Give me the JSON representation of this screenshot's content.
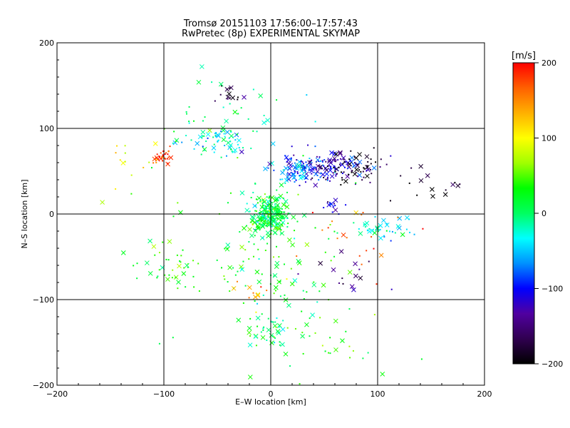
{
  "chart_data": {
    "type": "scatter",
    "title": "Tromsø 20151103 17:56:00–17:57:43",
    "subtitle": "RwPretec (8p) EXPERIMENTAL SKYMAP",
    "xlabel": "E–W location [km]",
    "ylabel": "N–S location [km]",
    "xlim": [
      -200,
      200
    ],
    "ylim": [
      -200,
      200
    ],
    "xticks": [
      -200,
      -100,
      0,
      100,
      200
    ],
    "yticks": [
      -200,
      -100,
      0,
      100,
      200
    ],
    "grid": true,
    "colorbar": {
      "label": "[m/s]",
      "min": -200,
      "max": 200,
      "ticks": [
        200,
        100,
        0,
        -100,
        -200
      ],
      "colors": [
        "#000000",
        "#300050",
        "#5000a0",
        "#0000ff",
        "#0090ff",
        "#00ffff",
        "#00ff60",
        "#00ff00",
        "#a0ff00",
        "#ffff00",
        "#ffb000",
        "#ff6000",
        "#ff0000"
      ]
    },
    "clusters": [
      {
        "x": 0,
        "y": 0,
        "vel": 10,
        "n": 260,
        "sx": 9,
        "sy": 12
      },
      {
        "x": 50,
        "y": 55,
        "vel": -110,
        "n": 130,
        "sx": 20,
        "sy": 8
      },
      {
        "x": 25,
        "y": 50,
        "vel": -70,
        "n": 60,
        "sx": 10,
        "sy": 8
      },
      {
        "x": 75,
        "y": 55,
        "vel": -190,
        "n": 70,
        "sx": 15,
        "sy": 10
      },
      {
        "x": -100,
        "y": 68,
        "vel": 185,
        "n": 30,
        "sx": 5,
        "sy": 5
      },
      {
        "x": -50,
        "y": 85,
        "vel": -30,
        "n": 60,
        "sx": 15,
        "sy": 8
      },
      {
        "x": -40,
        "y": 140,
        "vel": -170,
        "n": 15,
        "sx": 8,
        "sy": 6
      },
      {
        "x": 60,
        "y": 10,
        "vel": -120,
        "n": 15,
        "sx": 5,
        "sy": 5
      },
      {
        "x": 110,
        "y": -15,
        "vel": -30,
        "n": 40,
        "sx": 15,
        "sy": 8
      },
      {
        "x": 5,
        "y": -60,
        "vel": 20,
        "n": 110,
        "sx": 30,
        "sy": 40
      },
      {
        "x": -90,
        "y": -70,
        "vel": 30,
        "n": 30,
        "sx": 15,
        "sy": 12
      },
      {
        "x": 40,
        "y": -150,
        "vel": 40,
        "n": 35,
        "sx": 40,
        "sy": 20
      },
      {
        "x": -60,
        "y": -30,
        "vel": 50,
        "n": 40,
        "sx": 50,
        "sy": 40
      },
      {
        "x": 5,
        "y": -140,
        "vel": 0,
        "n": 25,
        "sx": 8,
        "sy": 10
      },
      {
        "x": 80,
        "y": -40,
        "vel": 170,
        "n": 20,
        "sx": 30,
        "sy": 30
      },
      {
        "x": 150,
        "y": 30,
        "vel": -180,
        "n": 15,
        "sx": 20,
        "sy": 10
      },
      {
        "x": -30,
        "y": 110,
        "vel": 0,
        "n": 40,
        "sx": 30,
        "sy": 25
      },
      {
        "x": -130,
        "y": 60,
        "vel": 90,
        "n": 15,
        "sx": 15,
        "sy": 15
      },
      {
        "x": 70,
        "y": -70,
        "vel": -150,
        "n": 15,
        "sx": 15,
        "sy": 10
      },
      {
        "x": -20,
        "y": -90,
        "vel": 170,
        "n": 10,
        "sx": 10,
        "sy": 5
      }
    ]
  }
}
